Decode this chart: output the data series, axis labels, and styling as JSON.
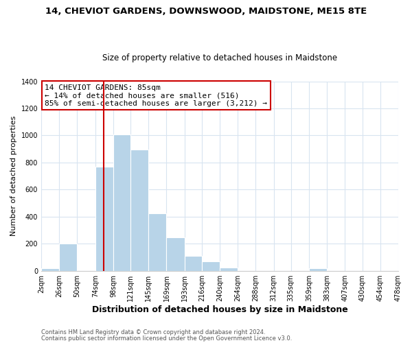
{
  "title": "14, CHEVIOT GARDENS, DOWNSWOOD, MAIDSTONE, ME15 8TE",
  "subtitle": "Size of property relative to detached houses in Maidstone",
  "xlabel": "Distribution of detached houses by size in Maidstone",
  "ylabel": "Number of detached properties",
  "footnote1": "Contains HM Land Registry data © Crown copyright and database right 2024.",
  "footnote2": "Contains public sector information licensed under the Open Government Licence v3.0.",
  "bar_edges": [
    2,
    26,
    50,
    74,
    98,
    121,
    145,
    169,
    193,
    216,
    240,
    264,
    288,
    312,
    335,
    359,
    383,
    407,
    430,
    454,
    478
  ],
  "bar_heights": [
    20,
    200,
    0,
    770,
    1010,
    895,
    425,
    245,
    110,
    70,
    25,
    0,
    0,
    0,
    0,
    20,
    0,
    0,
    0,
    0
  ],
  "bar_color": "#b8d4e8",
  "bar_edge_color": "#b8d4e8",
  "vline_x": 85,
  "vline_color": "#cc0000",
  "annotation_line1": "14 CHEVIOT GARDENS: 85sqm",
  "annotation_line2": "← 14% of detached houses are smaller (516)",
  "annotation_line3": "85% of semi-detached houses are larger (3,212) →",
  "annotation_box_color": "white",
  "annotation_box_edge_color": "#cc0000",
  "ylim": [
    0,
    1400
  ],
  "yticks": [
    0,
    200,
    400,
    600,
    800,
    1000,
    1200,
    1400
  ],
  "xtick_labels": [
    "2sqm",
    "26sqm",
    "50sqm",
    "74sqm",
    "98sqm",
    "121sqm",
    "145sqm",
    "169sqm",
    "193sqm",
    "216sqm",
    "240sqm",
    "264sqm",
    "288sqm",
    "312sqm",
    "335sqm",
    "359sqm",
    "383sqm",
    "407sqm",
    "430sqm",
    "454sqm",
    "478sqm"
  ],
  "grid_color": "#d8e4f0",
  "title_fontsize": 9.5,
  "subtitle_fontsize": 8.5,
  "xlabel_fontsize": 9,
  "ylabel_fontsize": 8,
  "annotation_fontsize": 8,
  "footnote_fontsize": 6,
  "tick_fontsize": 7
}
